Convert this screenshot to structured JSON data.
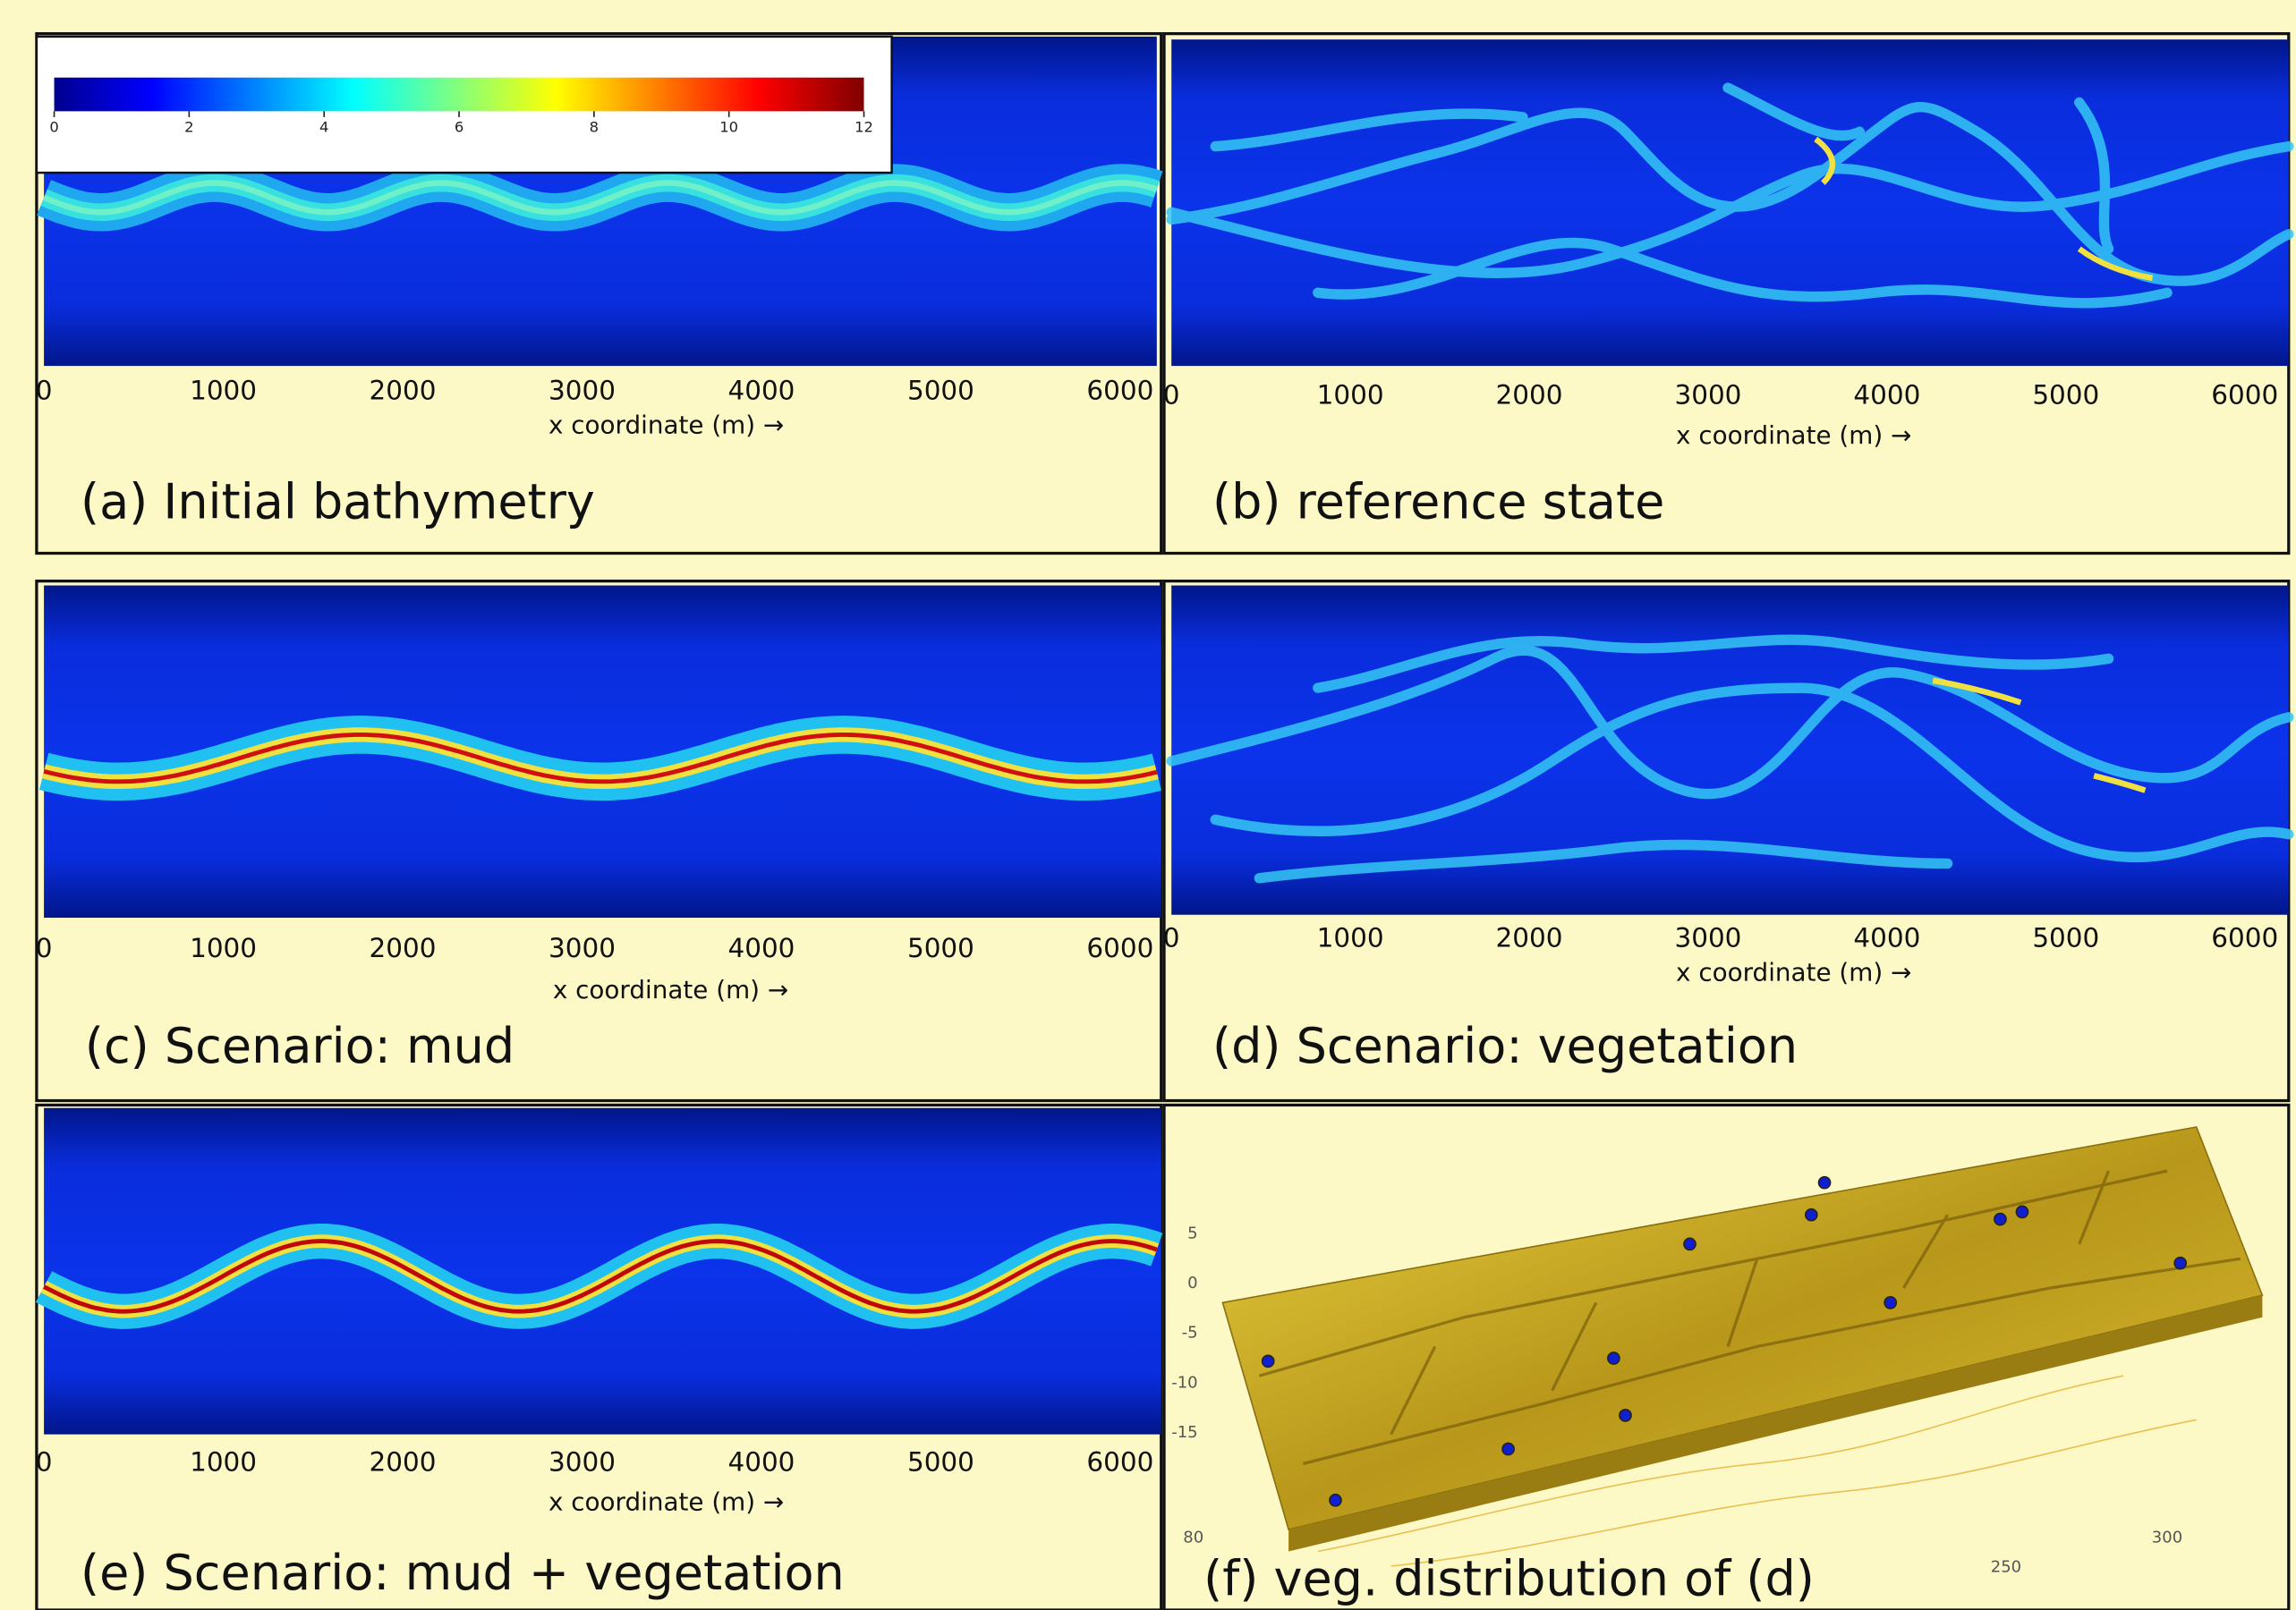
{
  "colorbar": {
    "ticks": [
      0,
      2,
      4,
      6,
      8,
      10,
      12
    ]
  },
  "panels": [
    {
      "caption": "(a) Initial bathymetry",
      "x_label": "x coordinate (m) →",
      "x_ticks": [
        0,
        1000,
        2000,
        3000,
        4000,
        5000,
        6000
      ]
    },
    {
      "caption": "(b) reference state",
      "x_label": "x coordinate (m) →",
      "x_ticks": [
        0,
        1000,
        2000,
        3000,
        4000,
        5000,
        6000
      ]
    },
    {
      "caption": "(c) Scenario: mud",
      "x_label": "x coordinate (m) →",
      "x_ticks": [
        0,
        1000,
        2000,
        3000,
        4000,
        5000,
        6000
      ]
    },
    {
      "caption": "(d) Scenario: vegetation",
      "x_label": "x coordinate (m) →",
      "x_ticks": [
        0,
        1000,
        2000,
        3000,
        4000,
        5000,
        6000
      ]
    },
    {
      "caption": "(e) Scenario:  mud + vegetation",
      "x_label": "x coordinate (m) →",
      "x_ticks": [
        0,
        1000,
        2000,
        3000,
        4000,
        5000,
        6000
      ]
    },
    {
      "caption": "(f) veg. distribution of (d)",
      "z_ticks": [
        5,
        0,
        -5,
        -10,
        -15
      ],
      "y_ticks": [
        80
      ],
      "x_ticks": [
        300,
        250
      ]
    }
  ]
}
